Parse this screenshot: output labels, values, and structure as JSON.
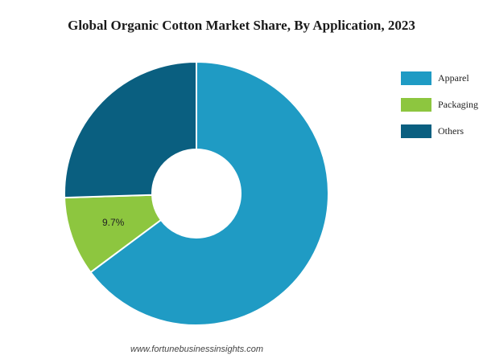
{
  "chart_data": {
    "type": "pie",
    "variant": "donut",
    "title": "Global Organic Cotton Market Share, By Application, 2023",
    "categories": [
      "Apparel",
      "Packaging",
      "Others"
    ],
    "values": [
      64.8,
      9.7,
      25.5
    ],
    "colors": [
      "#1f9bc4",
      "#8dc63f",
      "#0a5f80"
    ],
    "data_labels": [
      "",
      "9.7%",
      ""
    ],
    "legend_position": "right"
  },
  "source": "www.fortunebusinessinsights.com"
}
